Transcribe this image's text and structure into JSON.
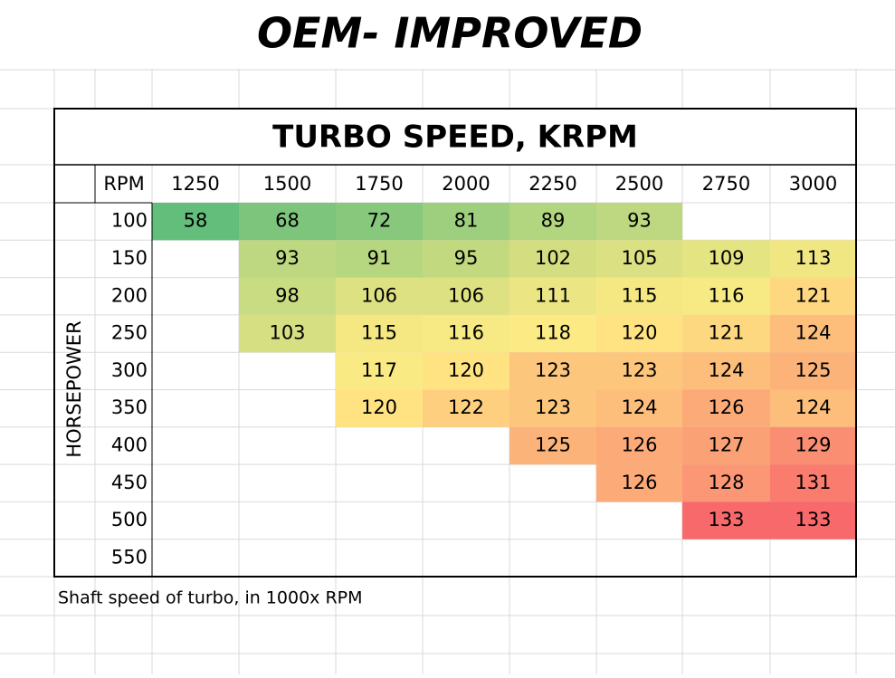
{
  "title": "OEM- IMPROVED",
  "table": {
    "header": "TURBO SPEED, KRPM",
    "column_header_label": "RPM",
    "row_axis_label": "HORSEPOWER",
    "columns": [
      1250,
      1500,
      1750,
      2000,
      2250,
      2500,
      2750,
      3000
    ],
    "color_scale": [
      "#63be7b",
      "#ffeb84",
      "#f8696b"
    ],
    "rows": [
      {
        "label": 100,
        "cells": [
          58,
          68,
          72,
          81,
          89,
          93,
          null,
          null
        ]
      },
      {
        "label": 150,
        "cells": [
          null,
          93,
          91,
          95,
          102,
          105,
          109,
          113
        ]
      },
      {
        "label": 200,
        "cells": [
          null,
          98,
          106,
          106,
          111,
          115,
          116,
          121
        ]
      },
      {
        "label": 250,
        "cells": [
          null,
          103,
          115,
          116,
          118,
          120,
          121,
          124
        ]
      },
      {
        "label": 300,
        "cells": [
          null,
          null,
          117,
          120,
          123,
          123,
          124,
          125
        ]
      },
      {
        "label": 350,
        "cells": [
          null,
          null,
          120,
          122,
          123,
          124,
          126,
          124
        ]
      },
      {
        "label": 400,
        "cells": [
          null,
          null,
          null,
          null,
          125,
          126,
          127,
          129
        ]
      },
      {
        "label": 450,
        "cells": [
          null,
          null,
          null,
          null,
          null,
          126,
          128,
          131
        ]
      },
      {
        "label": 500,
        "cells": [
          null,
          null,
          null,
          null,
          null,
          null,
          133,
          133
        ]
      },
      {
        "label": 550,
        "cells": [
          null,
          null,
          null,
          null,
          null,
          null,
          null,
          null
        ]
      }
    ]
  },
  "footnote": "Shaft speed of turbo, in 1000x RPM"
}
